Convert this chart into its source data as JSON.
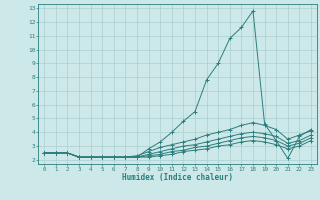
{
  "xlabel": "Humidex (Indice chaleur)",
  "ylabel": "",
  "bg_color": "#cce8e8",
  "line_color": "#2d7d7d",
  "grid_color": "#aacfcf",
  "xlim": [
    -0.5,
    23.5
  ],
  "ylim": [
    1.7,
    13.3
  ],
  "xticks": [
    0,
    1,
    2,
    3,
    4,
    5,
    6,
    7,
    8,
    9,
    10,
    11,
    12,
    13,
    14,
    15,
    16,
    17,
    18,
    19,
    20,
    21,
    22,
    23
  ],
  "yticks": [
    2,
    3,
    4,
    5,
    6,
    7,
    8,
    9,
    10,
    11,
    12,
    13
  ],
  "lines": [
    {
      "x": [
        0,
        1,
        2,
        3,
        4,
        5,
        6,
        7,
        8,
        9,
        10,
        11,
        12,
        13,
        14,
        15,
        16,
        17,
        18,
        19,
        20,
        21,
        22,
        23
      ],
      "y": [
        2.5,
        2.5,
        2.5,
        2.2,
        2.2,
        2.2,
        2.2,
        2.2,
        2.2,
        2.8,
        3.3,
        4.0,
        4.8,
        5.5,
        7.8,
        9.0,
        10.8,
        11.6,
        12.8,
        4.6,
        3.4,
        2.1,
        3.7,
        4.2
      ]
    },
    {
      "x": [
        0,
        1,
        2,
        3,
        4,
        5,
        6,
        7,
        8,
        9,
        10,
        11,
        12,
        13,
        14,
        15,
        16,
        17,
        18,
        19,
        20,
        21,
        22,
        23
      ],
      "y": [
        2.5,
        2.5,
        2.5,
        2.2,
        2.2,
        2.2,
        2.2,
        2.2,
        2.3,
        2.6,
        2.9,
        3.1,
        3.3,
        3.5,
        3.8,
        4.0,
        4.2,
        4.5,
        4.7,
        4.5,
        4.2,
        3.5,
        3.8,
        4.1
      ]
    },
    {
      "x": [
        0,
        1,
        2,
        3,
        4,
        5,
        6,
        7,
        8,
        9,
        10,
        11,
        12,
        13,
        14,
        15,
        16,
        17,
        18,
        19,
        20,
        21,
        22,
        23
      ],
      "y": [
        2.5,
        2.5,
        2.5,
        2.2,
        2.2,
        2.2,
        2.2,
        2.2,
        2.2,
        2.4,
        2.6,
        2.8,
        3.0,
        3.1,
        3.3,
        3.5,
        3.7,
        3.9,
        4.0,
        3.9,
        3.7,
        3.2,
        3.4,
        3.8
      ]
    },
    {
      "x": [
        0,
        1,
        2,
        3,
        4,
        5,
        6,
        7,
        8,
        9,
        10,
        11,
        12,
        13,
        14,
        15,
        16,
        17,
        18,
        19,
        20,
        21,
        22,
        23
      ],
      "y": [
        2.5,
        2.5,
        2.5,
        2.2,
        2.2,
        2.2,
        2.2,
        2.2,
        2.2,
        2.3,
        2.4,
        2.6,
        2.7,
        2.9,
        3.0,
        3.2,
        3.4,
        3.6,
        3.7,
        3.6,
        3.4,
        3.0,
        3.2,
        3.6
      ]
    },
    {
      "x": [
        0,
        1,
        2,
        3,
        4,
        5,
        6,
        7,
        8,
        9,
        10,
        11,
        12,
        13,
        14,
        15,
        16,
        17,
        18,
        19,
        20,
        21,
        22,
        23
      ],
      "y": [
        2.5,
        2.5,
        2.5,
        2.2,
        2.2,
        2.2,
        2.2,
        2.2,
        2.2,
        2.2,
        2.3,
        2.4,
        2.6,
        2.7,
        2.8,
        3.0,
        3.1,
        3.3,
        3.4,
        3.3,
        3.1,
        2.8,
        3.0,
        3.4
      ]
    }
  ]
}
